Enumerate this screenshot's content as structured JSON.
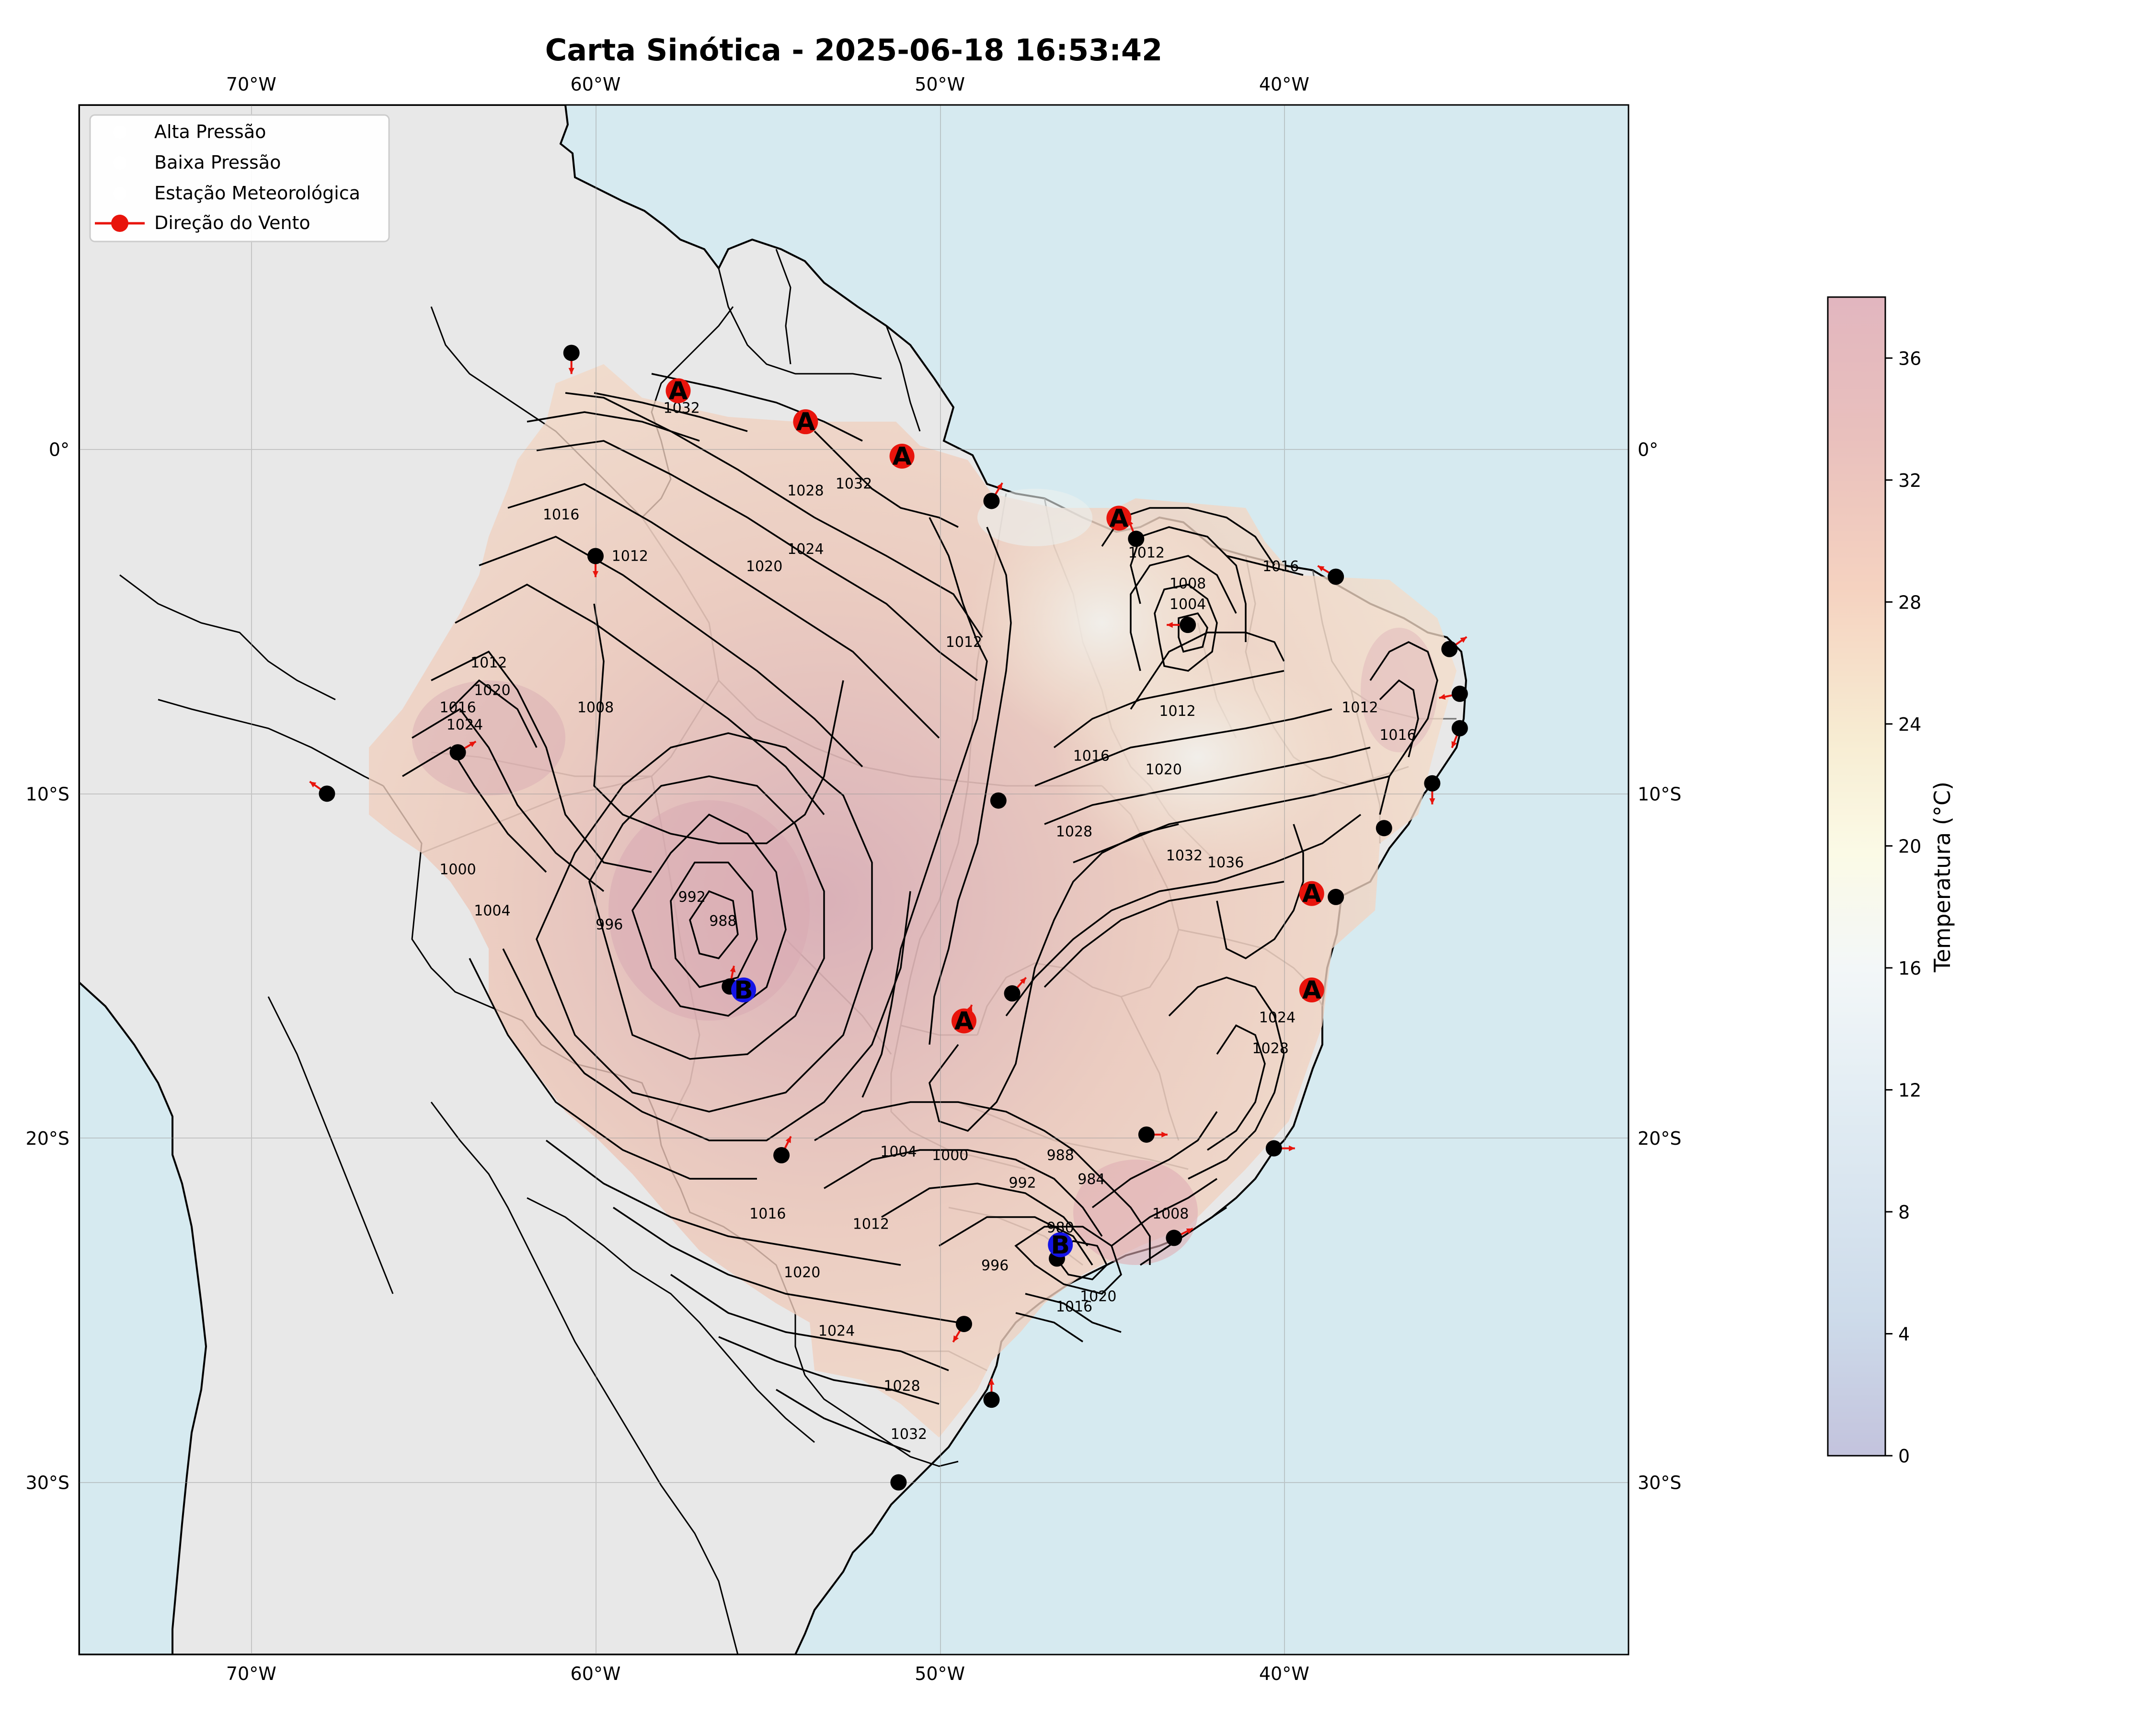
{
  "title": "Carta Sinótica - 2025-06-18 16:53:42",
  "map": {
    "lon_range": [
      -75,
      -30
    ],
    "lat_range": [
      -35,
      10
    ],
    "ocean_color": "#d6eaf0",
    "land_color": "#e8e8e8",
    "coast_color": "#000000",
    "grid": true,
    "lon_ticks": [
      {
        "value": -70,
        "label": "70°W"
      },
      {
        "value": -60,
        "label": "60°W"
      },
      {
        "value": -50,
        "label": "50°W"
      },
      {
        "value": -40,
        "label": "40°W"
      }
    ],
    "lat_ticks": [
      {
        "value": 0,
        "label": "0°"
      },
      {
        "value": -10,
        "label": "10°S"
      },
      {
        "value": -20,
        "label": "20°S"
      },
      {
        "value": -30,
        "label": "30°S"
      }
    ]
  },
  "legend": {
    "placement": "upper-left",
    "items": [
      {
        "label": "Alta Pressão",
        "marker": "high-pressure-marker"
      },
      {
        "label": "Baixa Pressão",
        "marker": "low-pressure-marker"
      },
      {
        "label": "Estação Meteorológica",
        "marker": "station-marker"
      },
      {
        "label": "Direção do Vento",
        "marker": "wind-arrow-marker",
        "color": "#e8140c"
      }
    ]
  },
  "colorbar": {
    "label": "Temperatura (°C)",
    "min": 0,
    "max": 38,
    "ticks": [
      "0",
      "4",
      "8",
      "12",
      "16",
      "20",
      "24",
      "28",
      "32",
      "36"
    ],
    "colormap": "RdYlBu_r"
  },
  "pressure_systems": {
    "high": {
      "symbol": "A",
      "color": "#e8140c"
    },
    "low": {
      "symbol": "B",
      "color": "#1414e6"
    }
  },
  "chart_data": {
    "type": "map",
    "highs": [
      {
        "lon": -57.6,
        "lat": 1.7
      },
      {
        "lon": -53.9,
        "lat": 0.8
      },
      {
        "lon": -51.1,
        "lat": -0.2
      },
      {
        "lon": -44.8,
        "lat": -2.0
      },
      {
        "lon": -39.2,
        "lat": -12.9
      },
      {
        "lon": -39.2,
        "lat": -15.7
      },
      {
        "lon": -49.3,
        "lat": -16.6
      }
    ],
    "lows": [
      {
        "lon": -55.7,
        "lat": -15.7
      },
      {
        "lon": -46.5,
        "lat": -23.1
      }
    ],
    "stations": [
      {
        "lon": -60.7,
        "lat": 2.8,
        "wind": [
          0,
          -1
        ]
      },
      {
        "lon": -60.0,
        "lat": -3.1,
        "wind": [
          0,
          -1
        ]
      },
      {
        "lon": -64.0,
        "lat": -8.8,
        "wind": [
          1,
          0.6
        ]
      },
      {
        "lon": -67.8,
        "lat": -10.0,
        "wind": [
          -1,
          0.7
        ]
      },
      {
        "lon": -56.1,
        "lat": -15.6,
        "wind": [
          0.2,
          1
        ]
      },
      {
        "lon": -54.6,
        "lat": -20.5,
        "wind": [
          0.5,
          1
        ]
      },
      {
        "lon": -48.3,
        "lat": -10.2,
        "wind": null
      },
      {
        "lon": -47.9,
        "lat": -15.8,
        "wind": [
          0.7,
          0.8
        ]
      },
      {
        "lon": -49.3,
        "lat": -16.7,
        "wind": [
          0.4,
          1
        ]
      },
      {
        "lon": -48.5,
        "lat": -1.5,
        "wind": [
          0.6,
          1
        ]
      },
      {
        "lon": -44.3,
        "lat": -2.6,
        "wind": [
          -0.4,
          1
        ]
      },
      {
        "lon": -42.8,
        "lat": -5.1,
        "wind": [
          -1,
          0
        ]
      },
      {
        "lon": -38.5,
        "lat": -3.7,
        "wind": [
          -1,
          0.6
        ]
      },
      {
        "lon": -35.2,
        "lat": -5.8,
        "wind": [
          1,
          0.7
        ]
      },
      {
        "lon": -34.9,
        "lat": -7.1,
        "wind": [
          -1,
          -0.2
        ]
      },
      {
        "lon": -34.9,
        "lat": -8.1,
        "wind": [
          -0.4,
          -1
        ]
      },
      {
        "lon": -35.7,
        "lat": -9.7,
        "wind": [
          0,
          -1
        ]
      },
      {
        "lon": -37.1,
        "lat": -11.0,
        "wind": null
      },
      {
        "lon": -38.5,
        "lat": -13.0,
        "wind": null
      },
      {
        "lon": -44.0,
        "lat": -19.9,
        "wind": [
          1,
          0
        ]
      },
      {
        "lon": -40.3,
        "lat": -20.3,
        "wind": [
          1,
          0
        ]
      },
      {
        "lon": -43.2,
        "lat": -22.9,
        "wind": [
          1,
          0.5
        ]
      },
      {
        "lon": -46.6,
        "lat": -23.5,
        "wind": null
      },
      {
        "lon": -49.3,
        "lat": -25.4,
        "wind": [
          -0.6,
          -1
        ]
      },
      {
        "lon": -48.5,
        "lat": -27.6,
        "wind": [
          0,
          1
        ]
      },
      {
        "lon": -51.2,
        "lat": -30.0,
        "wind": null
      }
    ],
    "contour_labels": [
      {
        "text": "1032",
        "lon": -57.5,
        "lat": 1.2
      },
      {
        "text": "1032",
        "lon": -52.5,
        "lat": -1.0
      },
      {
        "text": "1028",
        "lon": -53.9,
        "lat": -1.2
      },
      {
        "text": "1024",
        "lon": -53.9,
        "lat": -2.9
      },
      {
        "text": "1020",
        "lon": -55.1,
        "lat": -3.4
      },
      {
        "text": "1016",
        "lon": -61.0,
        "lat": -1.9
      },
      {
        "text": "1012",
        "lon": -59.0,
        "lat": -3.1
      },
      {
        "text": "1012",
        "lon": -63.1,
        "lat": -6.2
      },
      {
        "text": "1020",
        "lon": -63.0,
        "lat": -7.0
      },
      {
        "text": "1016",
        "lon": -64.0,
        "lat": -7.5
      },
      {
        "text": "1024",
        "lon": -63.8,
        "lat": -8.0
      },
      {
        "text": "1008",
        "lon": -60.0,
        "lat": -7.5
      },
      {
        "text": "1000",
        "lon": -64.0,
        "lat": -12.2
      },
      {
        "text": "1004",
        "lon": -63.0,
        "lat": -13.4
      },
      {
        "text": "996",
        "lon": -59.6,
        "lat": -13.8
      },
      {
        "text": "992",
        "lon": -57.2,
        "lat": -13.0
      },
      {
        "text": "988",
        "lon": -56.3,
        "lat": -13.7
      },
      {
        "text": "1012",
        "lon": -49.3,
        "lat": -5.6
      },
      {
        "text": "1012",
        "lon": -44.0,
        "lat": -3.0
      },
      {
        "text": "1008",
        "lon": -42.8,
        "lat": -3.9
      },
      {
        "text": "1004",
        "lon": -42.8,
        "lat": -4.5
      },
      {
        "text": "1016",
        "lon": -40.1,
        "lat": -3.4
      },
      {
        "text": "1012",
        "lon": -43.1,
        "lat": -7.6
      },
      {
        "text": "1016",
        "lon": -45.6,
        "lat": -8.9
      },
      {
        "text": "1020",
        "lon": -43.5,
        "lat": -9.3
      },
      {
        "text": "1028",
        "lon": -46.1,
        "lat": -11.1
      },
      {
        "text": "1032",
        "lon": -42.9,
        "lat": -11.8
      },
      {
        "text": "1036",
        "lon": -41.7,
        "lat": -12.0
      },
      {
        "text": "1012",
        "lon": -37.8,
        "lat": -7.5
      },
      {
        "text": "1016",
        "lon": -36.7,
        "lat": -8.3
      },
      {
        "text": "1024",
        "lon": -40.2,
        "lat": -16.5
      },
      {
        "text": "1028",
        "lon": -40.4,
        "lat": -17.4
      },
      {
        "text": "1004",
        "lon": -51.2,
        "lat": -20.4
      },
      {
        "text": "1000",
        "lon": -49.7,
        "lat": -20.5
      },
      {
        "text": "992",
        "lon": -47.6,
        "lat": -21.3
      },
      {
        "text": "988",
        "lon": -46.5,
        "lat": -20.5
      },
      {
        "text": "984",
        "lon": -45.6,
        "lat": -21.2
      },
      {
        "text": "980",
        "lon": -46.5,
        "lat": -22.6
      },
      {
        "text": "996",
        "lon": -48.4,
        "lat": -23.7
      },
      {
        "text": "1008",
        "lon": -43.3,
        "lat": -22.2
      },
      {
        "text": "1012",
        "lon": -52.0,
        "lat": -22.5
      },
      {
        "text": "1016",
        "lon": -55.0,
        "lat": -22.2
      },
      {
        "text": "1020",
        "lon": -54.0,
        "lat": -23.9
      },
      {
        "text": "1024",
        "lon": -53.0,
        "lat": -25.6
      },
      {
        "text": "1028",
        "lon": -51.1,
        "lat": -27.2
      },
      {
        "text": "1032",
        "lon": -50.9,
        "lat": -28.6
      },
      {
        "text": "1016",
        "lon": -46.1,
        "lat": -24.9
      },
      {
        "text": "1020",
        "lon": -45.4,
        "lat": -24.6
      }
    ]
  }
}
